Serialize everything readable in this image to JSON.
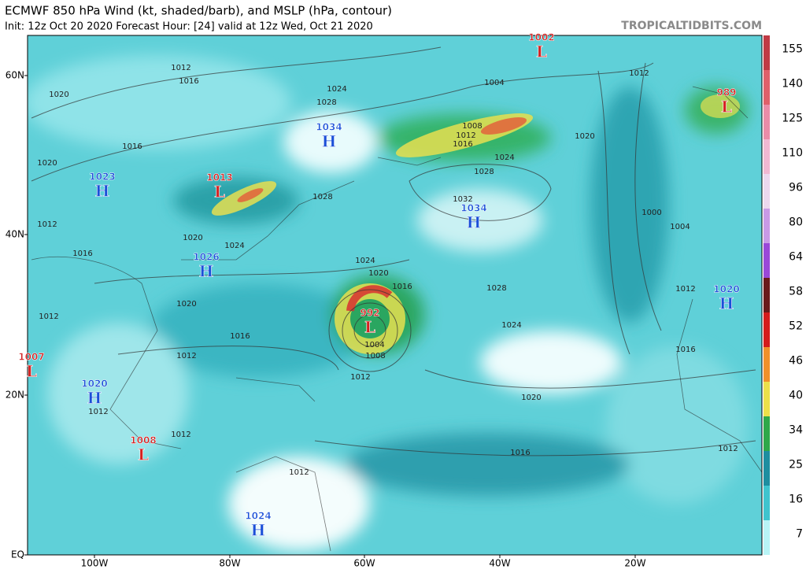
{
  "header": {
    "title": "ECMWF 850 hPa Wind (kt, shaded/barb), and MSLP (hPa, contour)",
    "subtitle": "Init: 12z Oct 20 2020   Forecast Hour: [24]   valid at 12z Wed, Oct 21 2020",
    "site": "TROPICALTIDBITS.COM"
  },
  "latitude_labels": [
    "60N",
    "40N",
    "20N",
    "EQ"
  ],
  "longitude_labels": [
    "100W",
    "80W",
    "60W",
    "40W",
    "20W"
  ],
  "pressure_centers": [
    {
      "letter": "L",
      "pressure": 1002
    },
    {
      "letter": "L",
      "pressure": 989
    },
    {
      "letter": "H",
      "pressure": 1034
    },
    {
      "letter": "H",
      "pressure": 1023
    },
    {
      "letter": "L",
      "pressure": 1013
    },
    {
      "letter": "H",
      "pressure": 1034
    },
    {
      "letter": "H",
      "pressure": 1026
    },
    {
      "letter": "L",
      "pressure": 992
    },
    {
      "letter": "H",
      "pressure": 1020
    },
    {
      "letter": "L",
      "pressure": 1007
    },
    {
      "letter": "H",
      "pressure": 1020
    },
    {
      "letter": "L",
      "pressure": 1008
    },
    {
      "letter": "H",
      "pressure": 1024
    }
  ],
  "contour_labels": [
    1012,
    1016,
    1020,
    1016,
    1020,
    1012,
    1016,
    1020,
    1024,
    1020,
    1016,
    1012,
    1012,
    1012,
    1012,
    1024,
    1028,
    1028,
    1004,
    1008,
    1012,
    1016,
    1020,
    1024,
    1028,
    1032,
    1012,
    1000,
    1004,
    1024,
    1020,
    1016,
    1028,
    1024,
    1012,
    1016,
    1004,
    1008,
    1012,
    1020,
    1016,
    1012,
    1012
  ],
  "colorbar": [
    {
      "label": 155,
      "color": "#c03a44"
    },
    {
      "label": 140,
      "color": "#e0606a"
    },
    {
      "label": 125,
      "color": "#ea8ca8"
    },
    {
      "label": 110,
      "color": "#f1b8d2"
    },
    {
      "label": 96,
      "color": "#ecd8ee"
    },
    {
      "label": 80,
      "color": "#c99ae6"
    },
    {
      "label": 64,
      "color": "#9a48d8"
    },
    {
      "label": 58,
      "color": "#6a1a1a"
    },
    {
      "label": 52,
      "color": "#d41c1c"
    },
    {
      "label": 46,
      "color": "#f0902a"
    },
    {
      "label": 40,
      "color": "#ece04a"
    },
    {
      "label": 34,
      "color": "#2fa84a"
    },
    {
      "label": 25,
      "color": "#1e8ea0"
    },
    {
      "label": 16,
      "color": "#3fc4ce"
    },
    {
      "label": 7,
      "color": "#b8f4f6"
    }
  ]
}
